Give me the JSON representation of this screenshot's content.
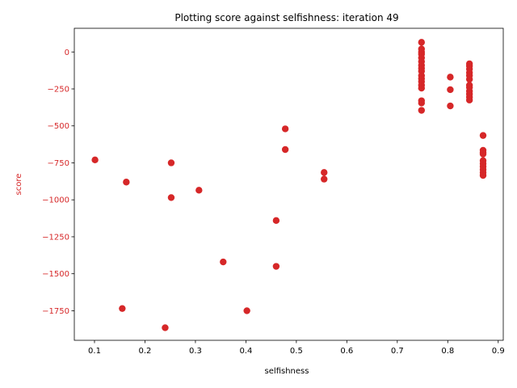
{
  "colors": {
    "series": "#d62728",
    "axis": "#000000",
    "ylabel_color": "#d62728"
  },
  "chart_data": {
    "type": "scatter",
    "title": "Plotting score against selfishness: iteration 49",
    "xlabel": "selfishness",
    "ylabel": "score",
    "xlim": [
      0.06,
      0.91
    ],
    "ylim": [
      -1950,
      160
    ],
    "xticks": [
      0.1,
      0.2,
      0.3,
      0.4,
      0.5,
      0.6,
      0.7,
      0.8,
      0.9
    ],
    "xtick_labels": [
      "0.1",
      "0.2",
      "0.3",
      "0.4",
      "0.5",
      "0.6",
      "0.7",
      "0.8",
      "0.9"
    ],
    "yticks": [
      0,
      -250,
      -500,
      -750,
      -1000,
      -1250,
      -1500,
      -1750
    ],
    "ytick_labels": [
      "0",
      "−250",
      "−500",
      "−750",
      "−1000",
      "−1250",
      "−1500",
      "−1750"
    ],
    "grid": false,
    "series": [
      {
        "points": [
          [
            0.101,
            -730
          ],
          [
            0.163,
            -880
          ],
          [
            0.155,
            -1735
          ],
          [
            0.24,
            -1865
          ],
          [
            0.252,
            -750
          ],
          [
            0.252,
            -985
          ],
          [
            0.307,
            -935
          ],
          [
            0.355,
            -1420
          ],
          [
            0.402,
            -1750
          ],
          [
            0.46,
            -1140
          ],
          [
            0.46,
            -1450
          ],
          [
            0.478,
            -520
          ],
          [
            0.478,
            -660
          ],
          [
            0.555,
            -815
          ],
          [
            0.555,
            -860
          ],
          [
            0.748,
            65
          ],
          [
            0.748,
            20
          ],
          [
            0.748,
            0
          ],
          [
            0.748,
            -15
          ],
          [
            0.748,
            -40
          ],
          [
            0.748,
            -65
          ],
          [
            0.748,
            -90
          ],
          [
            0.748,
            -110
          ],
          [
            0.748,
            -130
          ],
          [
            0.748,
            -160
          ],
          [
            0.748,
            -180
          ],
          [
            0.748,
            -200
          ],
          [
            0.748,
            -225
          ],
          [
            0.748,
            -245
          ],
          [
            0.748,
            -330
          ],
          [
            0.748,
            -345
          ],
          [
            0.748,
            -395
          ],
          [
            0.805,
            -170
          ],
          [
            0.805,
            -255
          ],
          [
            0.805,
            -365
          ],
          [
            0.843,
            -80
          ],
          [
            0.843,
            -95
          ],
          [
            0.843,
            -115
          ],
          [
            0.843,
            -140
          ],
          [
            0.843,
            -160
          ],
          [
            0.843,
            -185
          ],
          [
            0.843,
            -225
          ],
          [
            0.843,
            -240
          ],
          [
            0.843,
            -265
          ],
          [
            0.843,
            -285
          ],
          [
            0.843,
            -305
          ],
          [
            0.843,
            -325
          ],
          [
            0.87,
            -565
          ],
          [
            0.87,
            -665
          ],
          [
            0.87,
            -680
          ],
          [
            0.87,
            -690
          ],
          [
            0.87,
            -735
          ],
          [
            0.87,
            -755
          ],
          [
            0.87,
            -775
          ],
          [
            0.87,
            -795
          ],
          [
            0.87,
            -815
          ],
          [
            0.87,
            -835
          ]
        ]
      }
    ]
  }
}
